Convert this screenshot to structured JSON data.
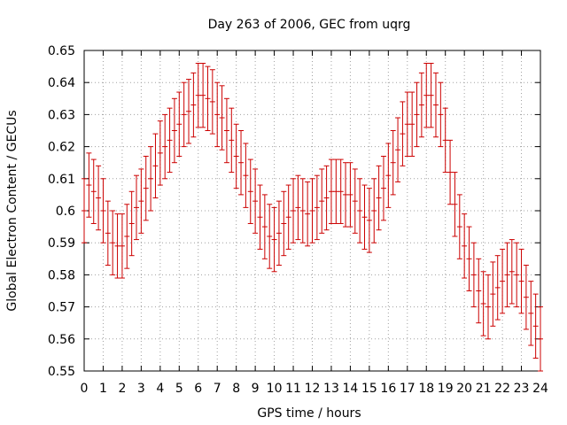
{
  "chart_data": {
    "type": "scatter",
    "title": "Day 263 of 2006, GEC from uqrg",
    "xlabel": "GPS time / hours",
    "ylabel": "Global Electron Content / GECUs",
    "xlim": [
      0,
      24
    ],
    "ylim": [
      0.55,
      0.65
    ],
    "x_ticks": [
      "0",
      "1",
      "2",
      "3",
      "4",
      "5",
      "6",
      "7",
      "8",
      "9",
      "10",
      "11",
      "12",
      "13",
      "14",
      "15",
      "16",
      "17",
      "18",
      "19",
      "20",
      "21",
      "22",
      "23",
      "24"
    ],
    "y_ticks": [
      "0.55",
      "0.56",
      "0.57",
      "0.58",
      "0.59",
      "0.6",
      "0.61",
      "0.62",
      "0.63",
      "0.64",
      "0.65"
    ],
    "grid": true,
    "series": [
      {
        "name": "GEC",
        "color": "#cc0000",
        "error": 0.01,
        "x": [
          0,
          0.25,
          0.5,
          0.75,
          1,
          1.25,
          1.5,
          1.75,
          2,
          2.25,
          2.5,
          2.75,
          3,
          3.25,
          3.5,
          3.75,
          4,
          4.25,
          4.5,
          4.75,
          5,
          5.25,
          5.5,
          5.75,
          6,
          6.25,
          6.5,
          6.75,
          7,
          7.25,
          7.5,
          7.75,
          8,
          8.25,
          8.5,
          8.75,
          9,
          9.25,
          9.5,
          9.75,
          10,
          10.25,
          10.5,
          10.75,
          11,
          11.25,
          11.5,
          11.75,
          12,
          12.25,
          12.5,
          12.75,
          13,
          13.25,
          13.5,
          13.75,
          14,
          14.25,
          14.5,
          14.75,
          15,
          15.25,
          15.5,
          15.75,
          16,
          16.25,
          16.5,
          16.75,
          17,
          17.25,
          17.5,
          17.75,
          18,
          18.25,
          18.5,
          18.75,
          19,
          19.25,
          19.5,
          19.75,
          20,
          20.25,
          20.5,
          20.75,
          21,
          21.25,
          21.5,
          21.75,
          22,
          22.25,
          22.5,
          22.75,
          23,
          23.25,
          23.5,
          23.75,
          24
        ],
        "y": [
          0.6,
          0.608,
          0.606,
          0.604,
          0.6,
          0.593,
          0.59,
          0.589,
          0.589,
          0.592,
          0.596,
          0.601,
          0.603,
          0.607,
          0.61,
          0.614,
          0.618,
          0.62,
          0.622,
          0.625,
          0.627,
          0.63,
          0.631,
          0.633,
          0.636,
          0.636,
          0.635,
          0.634,
          0.63,
          0.629,
          0.625,
          0.622,
          0.617,
          0.615,
          0.611,
          0.606,
          0.603,
          0.598,
          0.595,
          0.592,
          0.591,
          0.593,
          0.596,
          0.598,
          0.6,
          0.601,
          0.6,
          0.599,
          0.6,
          0.601,
          0.603,
          0.604,
          0.606,
          0.606,
          0.606,
          0.605,
          0.605,
          0.603,
          0.6,
          0.598,
          0.597,
          0.6,
          0.604,
          0.607,
          0.611,
          0.615,
          0.619,
          0.624,
          0.627,
          0.627,
          0.63,
          0.633,
          0.636,
          0.636,
          0.633,
          0.63,
          0.622,
          0.612,
          0.602,
          0.595,
          0.589,
          0.585,
          0.58,
          0.575,
          0.571,
          0.57,
          0.574,
          0.576,
          0.578,
          0.58,
          0.581,
          0.58,
          0.578,
          0.573,
          0.568,
          0.564,
          0.56
        ]
      }
    ]
  }
}
